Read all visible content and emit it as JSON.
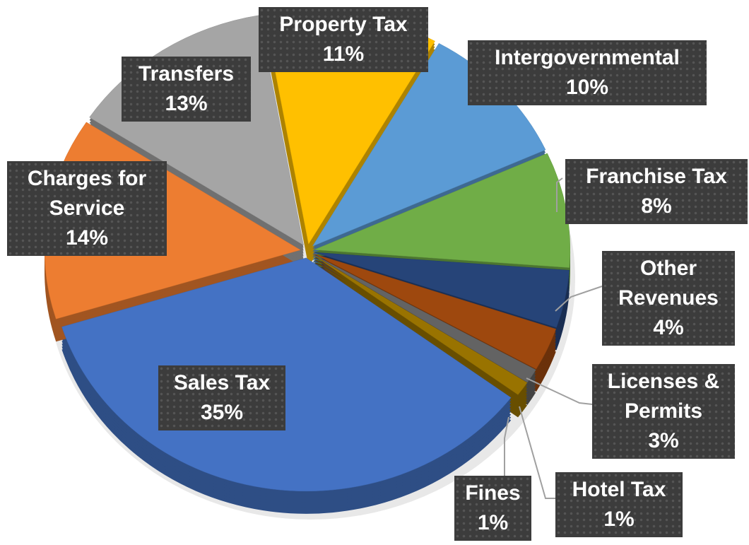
{
  "chart_data": {
    "type": "pie",
    "categories": [
      "Property Tax",
      "Intergovernmental",
      "Franchise Tax",
      "Other Revenues",
      "Licenses & Permits",
      "Hotel Tax",
      "Fines",
      "Sales Tax",
      "Charges for Service",
      "Transfers"
    ],
    "values": [
      11,
      10,
      8,
      4,
      3,
      1,
      1,
      35,
      14,
      13
    ],
    "value_labels": [
      "11%",
      "10%",
      "8%",
      "4%",
      "3%",
      "1%",
      "1%",
      "35%",
      "14%",
      "13%"
    ],
    "colors": [
      "#ffc000",
      "#5b9bd5",
      "#70ad47",
      "#264478",
      "#9e480e",
      "#636363",
      "#997300",
      "#4472c4",
      "#ed7d31",
      "#a5a5a5"
    ]
  }
}
